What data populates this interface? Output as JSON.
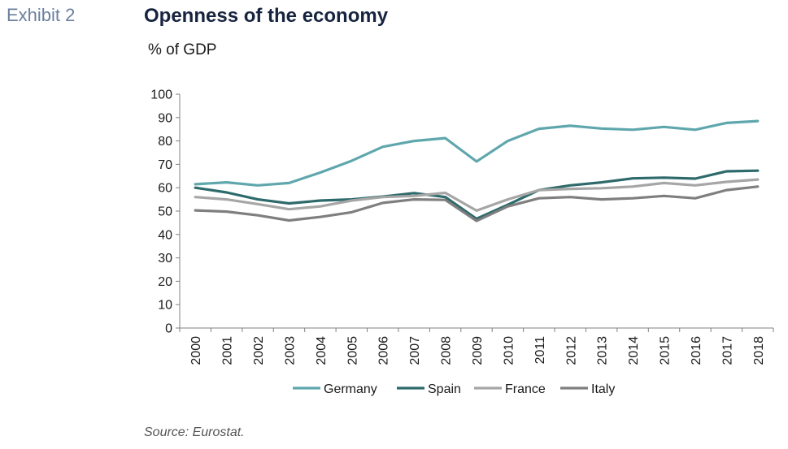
{
  "header": {
    "exhibit": "Exhibit 2",
    "title": "Openness of the economy",
    "subtitle": "% of GDP"
  },
  "footer": {
    "source": "Source: Eurostat."
  },
  "chart_data": {
    "type": "line",
    "title": "Openness of the economy",
    "ylabel": "% of GDP",
    "xlabel": "",
    "ylim": [
      0,
      100
    ],
    "yticks": [
      0,
      10,
      20,
      30,
      40,
      50,
      60,
      70,
      80,
      90,
      100
    ],
    "categories": [
      "2000",
      "2001",
      "2002",
      "2003",
      "2004",
      "2005",
      "2006",
      "2007",
      "2008",
      "2009",
      "2010",
      "2011",
      "2012",
      "2013",
      "2014",
      "2015",
      "2016",
      "2017",
      "2018"
    ],
    "grid": false,
    "legend": "bottom",
    "series": [
      {
        "name": "Germany",
        "color": "#5fa7ad",
        "values": [
          61.5,
          62.3,
          61,
          62,
          66.5,
          71.5,
          77.5,
          80,
          81.2,
          71.2,
          80,
          85.2,
          86.5,
          85.3,
          84.8,
          86,
          84.8,
          87.7,
          88.5
        ]
      },
      {
        "name": "Spain",
        "color": "#2e6a6b",
        "values": [
          60,
          58,
          55,
          53.3,
          54.5,
          55,
          56.2,
          57.7,
          56,
          46.7,
          52.7,
          59,
          61,
          62.3,
          64,
          64.3,
          63.9,
          67,
          67.3
        ]
      },
      {
        "name": "France",
        "color": "#a6a6a6",
        "values": [
          56,
          55,
          53,
          50.8,
          52,
          54.5,
          56,
          56.5,
          57.8,
          50.2,
          55,
          59,
          59.5,
          59.8,
          60.5,
          62,
          61,
          62.5,
          63.5
        ]
      },
      {
        "name": "Italy",
        "color": "#7f7f7f",
        "values": [
          50.3,
          49.8,
          48.2,
          46,
          47.5,
          49.5,
          53.5,
          55,
          54.8,
          45.8,
          52,
          55.5,
          56,
          55,
          55.5,
          56.5,
          55.5,
          59,
          60.5
        ]
      }
    ]
  }
}
